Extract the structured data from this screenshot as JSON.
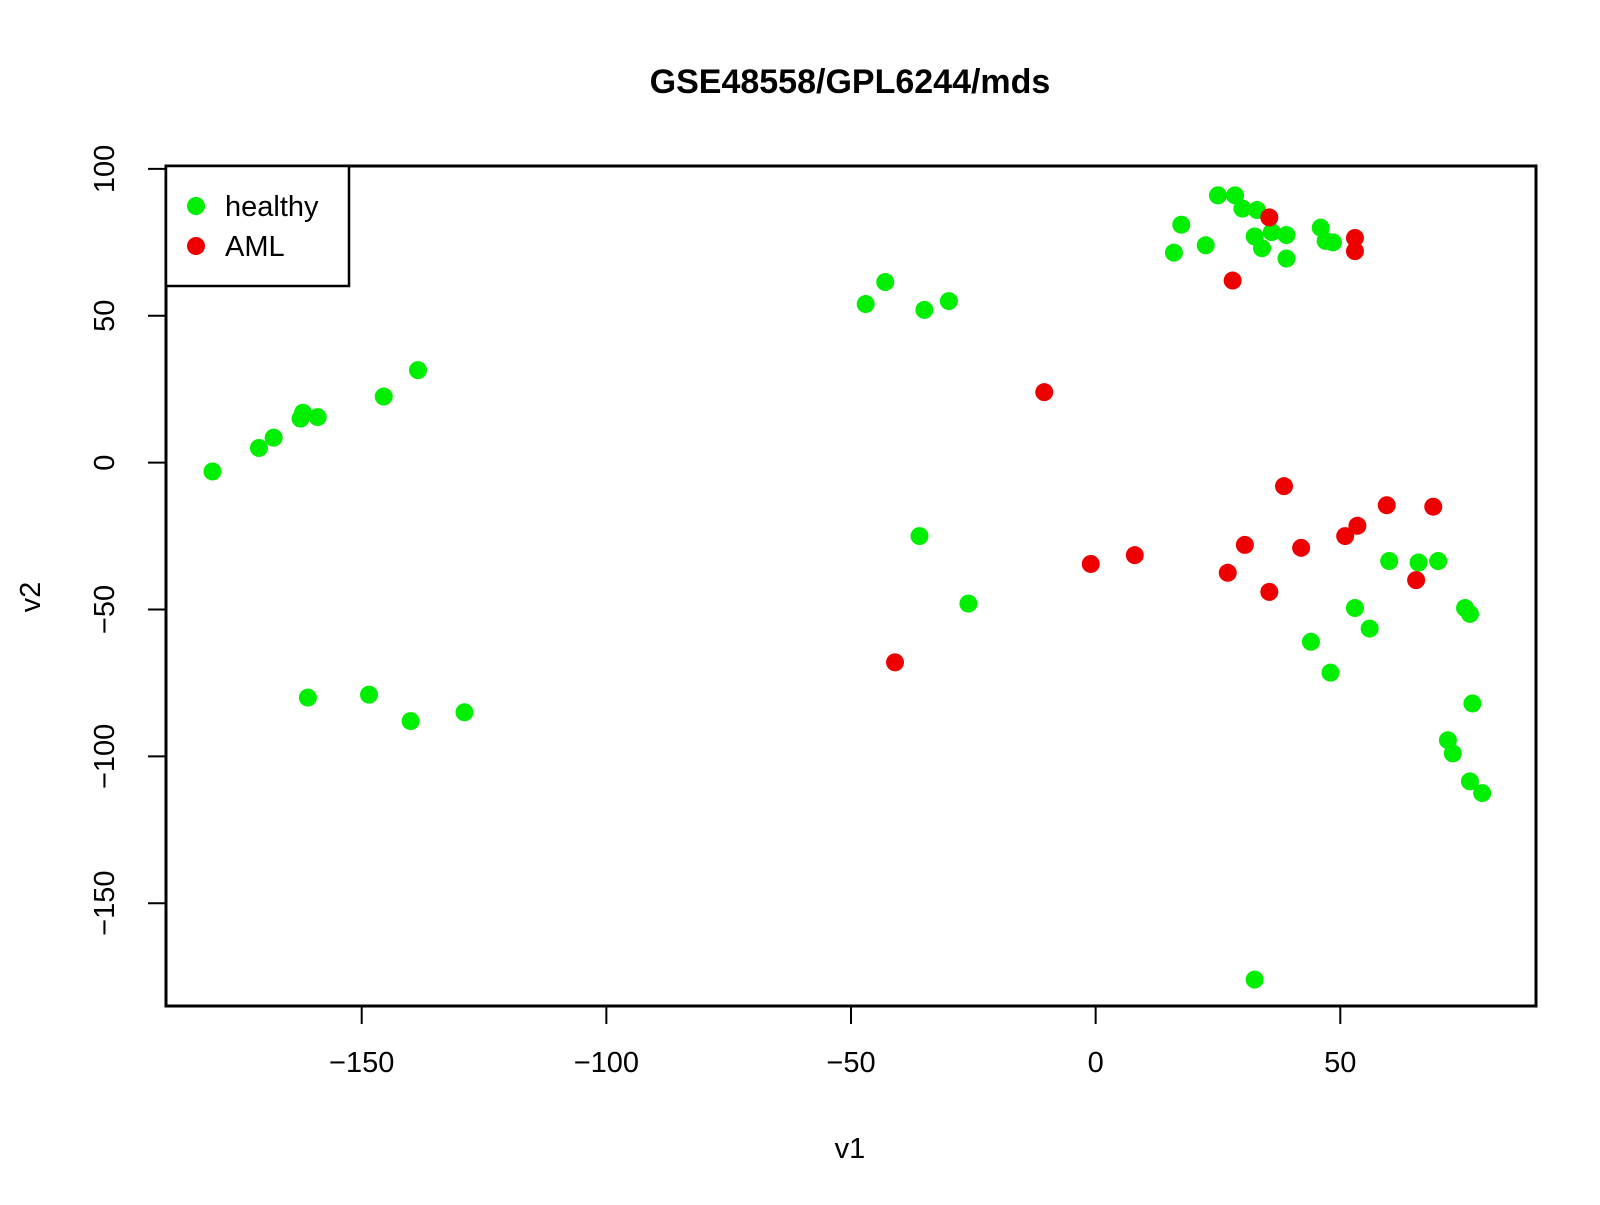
{
  "chart_data": {
    "type": "scatter",
    "title": "GSE48558/GPL6244/mds",
    "xlabel": "v1",
    "ylabel": "v2",
    "xlim": [
      -190,
      90
    ],
    "ylim": [
      -185,
      101
    ],
    "x_ticks": [
      -150,
      -100,
      -50,
      0,
      50
    ],
    "y_ticks": [
      -150,
      -100,
      -50,
      0,
      50,
      100
    ],
    "x_tick_labels": [
      "−150",
      "−100",
      "−50",
      "0",
      "50"
    ],
    "y_tick_labels": [
      "−150",
      "−100",
      "−50",
      "0",
      "50",
      "100"
    ],
    "grid": false,
    "legend_position": "top-left",
    "series": [
      {
        "name": "healthy",
        "color": "#00ee00",
        "points": [
          [
            -180.5,
            -3
          ],
          [
            -171,
            5
          ],
          [
            -168,
            8.5
          ],
          [
            -162,
            17
          ],
          [
            -162.5,
            15
          ],
          [
            -159,
            15.5
          ],
          [
            -145.5,
            22.5
          ],
          [
            -138.5,
            31.5
          ],
          [
            -161,
            -80
          ],
          [
            -148.5,
            -79
          ],
          [
            -140,
            -88
          ],
          [
            -129,
            -85
          ],
          [
            -47,
            54
          ],
          [
            -43,
            61.5
          ],
          [
            -35,
            52
          ],
          [
            -30,
            55
          ],
          [
            -36,
            -25
          ],
          [
            -26,
            -48
          ],
          [
            16,
            71.5
          ],
          [
            17.5,
            81
          ],
          [
            22.5,
            74
          ],
          [
            25,
            91
          ],
          [
            28.5,
            91
          ],
          [
            30,
            86.5
          ],
          [
            32.5,
            77
          ],
          [
            33,
            86
          ],
          [
            34,
            73
          ],
          [
            36,
            78.5
          ],
          [
            39,
            77.5
          ],
          [
            39,
            69.5
          ],
          [
            46,
            80
          ],
          [
            47,
            75.5
          ],
          [
            48.5,
            75
          ],
          [
            44,
            -61
          ],
          [
            48,
            -71.5
          ],
          [
            53,
            -49.5
          ],
          [
            56,
            -56.5
          ],
          [
            60,
            -33.5
          ],
          [
            66,
            -34
          ],
          [
            70,
            -33.5
          ],
          [
            75.5,
            -49.5
          ],
          [
            76.5,
            -51.5
          ],
          [
            77,
            -82
          ],
          [
            72,
            -94.5
          ],
          [
            73,
            -99
          ],
          [
            76.5,
            -108.5
          ],
          [
            79,
            -112.5
          ],
          [
            32.5,
            -176
          ]
        ]
      },
      {
        "name": "AML",
        "color": "#ee0000",
        "points": [
          [
            35.5,
            83.5
          ],
          [
            28,
            62
          ],
          [
            53,
            76.5
          ],
          [
            53,
            72
          ],
          [
            -10.5,
            24
          ],
          [
            38.5,
            -8
          ],
          [
            59.5,
            -14.5
          ],
          [
            69,
            -15
          ],
          [
            53.5,
            -21.5
          ],
          [
            51,
            -25
          ],
          [
            42,
            -29
          ],
          [
            30.5,
            -28
          ],
          [
            27,
            -37.5
          ],
          [
            35.5,
            -44
          ],
          [
            65.5,
            -40
          ],
          [
            -1,
            -34.5
          ],
          [
            8,
            -31.5
          ],
          [
            -41,
            -68
          ]
        ]
      }
    ]
  }
}
